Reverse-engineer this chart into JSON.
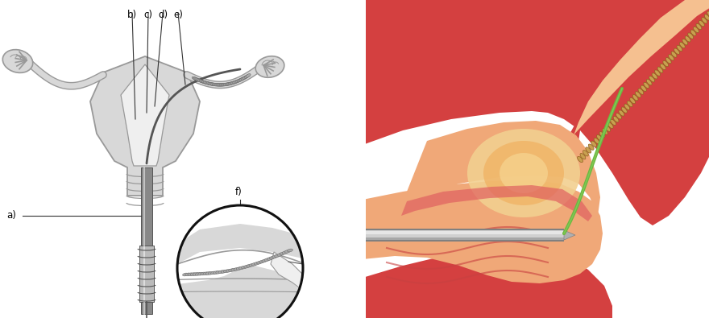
{
  "bg_color": "#ffffff",
  "left_panel": {
    "label_a": "a)",
    "label_b": "b)",
    "label_c": "c)",
    "label_d": "d)",
    "label_e": "e)",
    "label_f": "f)",
    "uterus_fill": "#d8d8d8",
    "uterus_outline": "#999999",
    "inner_fill": "#efefef",
    "device_gray": "#888888",
    "device_light": "#bbbbbb",
    "device_dark": "#555555",
    "coil_fill": "#aaaaaa",
    "coil_edge": "#666666",
    "line_color": "#333333",
    "circle_edge": "#111111"
  },
  "right_panel": {
    "outer_red": "#d44040",
    "mid_red": "#e06060",
    "inner_peach": "#f0a878",
    "inner_light": "#f5c090",
    "cavity_yellow": "#f2d090",
    "cavity_orange": "#f0b060",
    "dark_red": "#bb3030",
    "fold_red": "#c84040",
    "catheter_silver": "#d0d0d0",
    "catheter_mid": "#b0b0b0",
    "catheter_dark": "#808080",
    "catheter_white": "#f0f0f0",
    "wire_green": "#6ab840",
    "wire_light_green": "#90d060",
    "coil_gold": "#c8a050",
    "coil_dark": "#906020"
  }
}
